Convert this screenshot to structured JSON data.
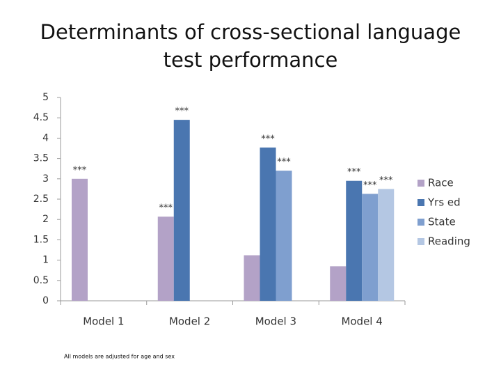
{
  "chart_data": {
    "type": "bar",
    "title": "Determinants of cross-sectional language test performance",
    "footnote": "All models are adjusted for age and sex",
    "categories": [
      "Model 1",
      "Model 2",
      "Model 3",
      "Model 4"
    ],
    "series": [
      {
        "name": "Race",
        "color": "#b3a2c7",
        "values": [
          3.0,
          2.07,
          1.12,
          0.85
        ],
        "significance": [
          "***",
          "***",
          null,
          null
        ]
      },
      {
        "name": "Yrs ed",
        "color": "#4a76b0",
        "values": [
          null,
          4.45,
          3.77,
          2.95
        ],
        "significance": [
          null,
          "***",
          "***",
          "***"
        ]
      },
      {
        "name": "State",
        "color": "#7f9fcf",
        "values": [
          null,
          null,
          3.2,
          2.63
        ],
        "significance": [
          null,
          null,
          "***",
          "***"
        ]
      },
      {
        "name": "Reading",
        "color": "#b4c7e3",
        "values": [
          null,
          null,
          null,
          2.75
        ],
        "significance": [
          null,
          null,
          null,
          "***"
        ]
      }
    ],
    "ylim": [
      0,
      5
    ],
    "yticks": [
      0,
      0.5,
      1,
      1.5,
      2,
      2.5,
      3,
      3.5,
      4,
      4.5,
      5
    ],
    "grid": false,
    "legend": "right"
  }
}
